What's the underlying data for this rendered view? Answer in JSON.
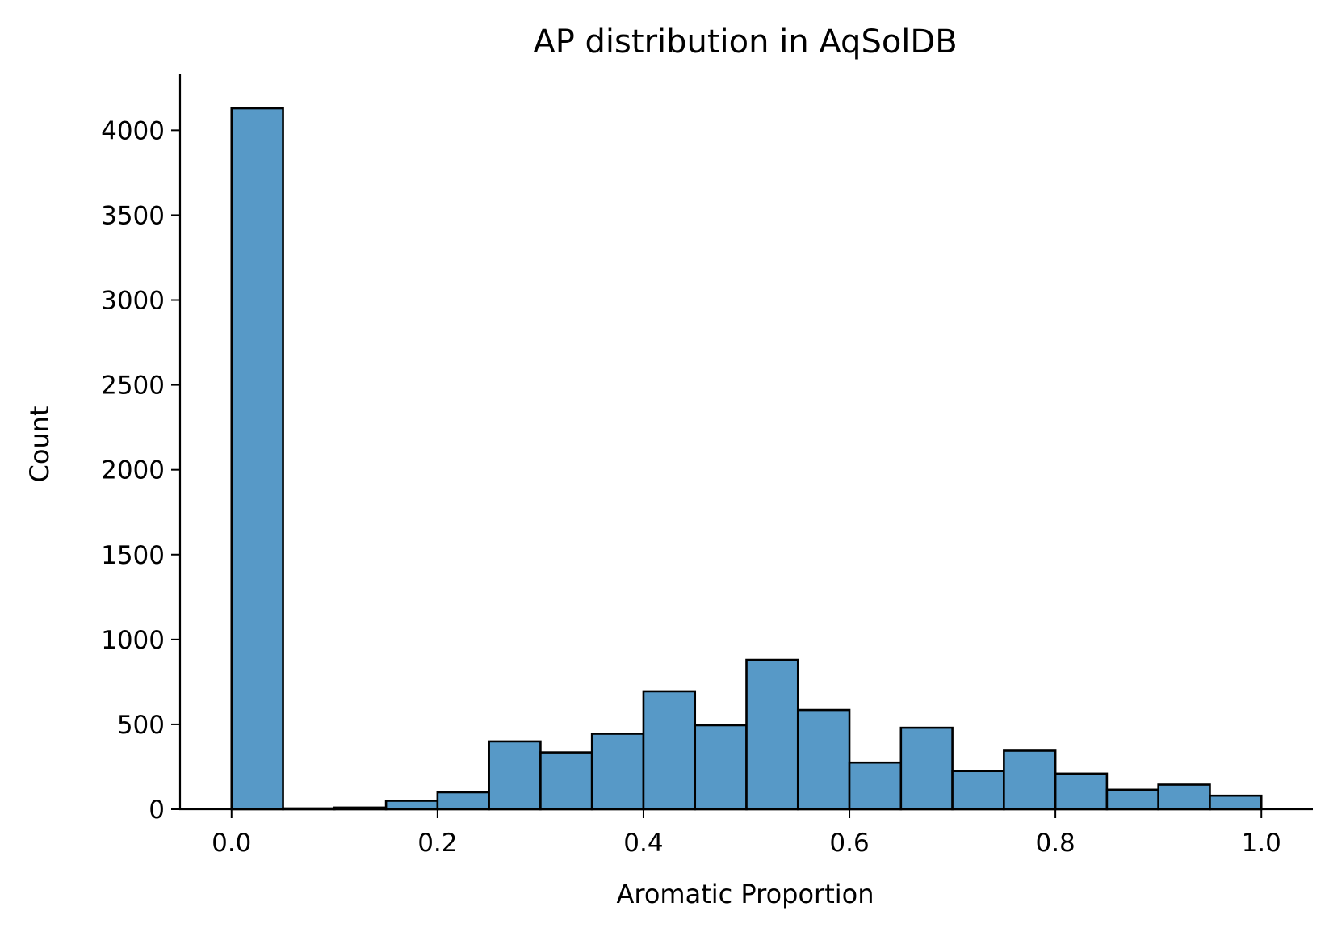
{
  "chart_data": {
    "type": "bar",
    "title": "AP distribution in AqSolDB",
    "xlabel": "Aromatic Proportion",
    "ylabel": "Count",
    "bin_width": 0.05,
    "bin_edges": [
      0.0,
      0.05,
      0.1,
      0.15,
      0.2,
      0.25,
      0.3,
      0.35,
      0.4,
      0.45,
      0.5,
      0.55,
      0.6,
      0.65,
      0.7,
      0.75,
      0.8,
      0.85,
      0.9,
      0.95,
      1.0
    ],
    "values": [
      4130,
      5,
      10,
      50,
      100,
      400,
      335,
      445,
      695,
      495,
      880,
      585,
      275,
      480,
      225,
      345,
      210,
      115,
      145,
      80
    ],
    "xlim": [
      -0.05,
      1.05
    ],
    "ylim": [
      0,
      4330
    ],
    "xticks": [
      0.0,
      0.2,
      0.4,
      0.6,
      0.8,
      1.0
    ],
    "xtick_labels": [
      "0.0",
      "0.2",
      "0.4",
      "0.6",
      "0.8",
      "1.0"
    ],
    "yticks": [
      0,
      500,
      1000,
      1500,
      2000,
      2500,
      3000,
      3500,
      4000
    ],
    "ytick_labels": [
      "0",
      "500",
      "1000",
      "1500",
      "2000",
      "2500",
      "3000",
      "3500",
      "4000"
    ],
    "grid": false,
    "bar_color": "#5799c7",
    "edge_color": "#000000"
  }
}
